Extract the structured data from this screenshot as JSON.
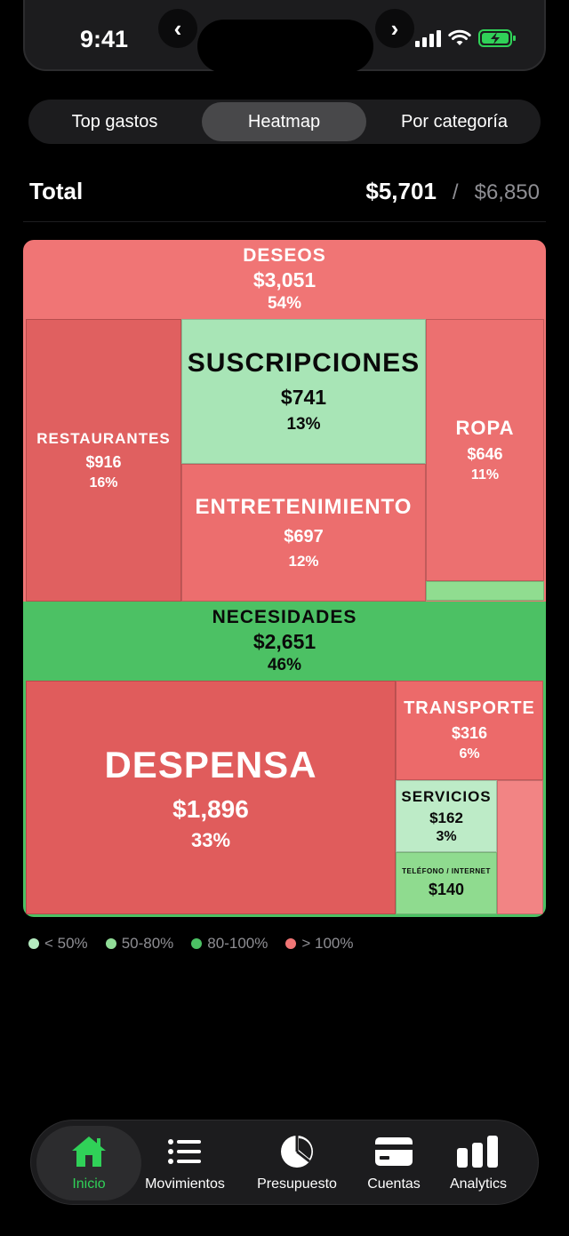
{
  "status_bar": {
    "time": "9:41",
    "back_glyph": "‹",
    "forward_glyph": "›"
  },
  "segmented": {
    "tabs": [
      "Top gastos",
      "Heatmap",
      "Por categoría"
    ],
    "active": "Heatmap"
  },
  "total": {
    "label": "Total",
    "spent": "$5,701",
    "separator": "/",
    "budget": "$6,850"
  },
  "treemap": {
    "deseos": {
      "name": "DESEOS",
      "amount": "$3,051",
      "pct": "54%"
    },
    "restaurantes": {
      "name": "RESTAURANTES",
      "amount": "$916",
      "pct": "16%"
    },
    "suscripciones": {
      "name": "SUSCRIPCIONES",
      "amount": "$741",
      "pct": "13%"
    },
    "entretenimiento": {
      "name": "ENTRETENIMIENTO",
      "amount": "$697",
      "pct": "12%"
    },
    "ropa": {
      "name": "ROPA",
      "amount": "$646",
      "pct": "11%"
    },
    "necesidades": {
      "name": "NECESIDADES",
      "amount": "$2,651",
      "pct": "46%"
    },
    "despensa": {
      "name": "DESPENSA",
      "amount": "$1,896",
      "pct": "33%"
    },
    "transporte": {
      "name": "TRANSPORTE",
      "amount": "$316",
      "pct": "6%"
    },
    "servicios": {
      "name": "SERVICIOS",
      "amount": "$162",
      "pct": "3%"
    },
    "telefono": {
      "name": "TELÉFONO / INTERNET",
      "amount": "$140"
    }
  },
  "legend": [
    {
      "label": "< 50%",
      "color": "#b5ebc0"
    },
    {
      "label": "50-80%",
      "color": "#90dd97"
    },
    {
      "label": "80-100%",
      "color": "#4cc164"
    },
    {
      "label": "> 100%",
      "color": "#f07575"
    }
  ],
  "colors": {
    "over": "#f07575",
    "over_dark": "#e06060",
    "green_light": "#a8e5b6",
    "green_pale": "#bdebc7",
    "green_mid": "#90dd90",
    "green": "#4cc164",
    "accent": "#30d158"
  },
  "tabbar": {
    "items": [
      {
        "label": "Inicio",
        "icon": "home-icon",
        "active": true
      },
      {
        "label": "Movimientos",
        "icon": "list-icon"
      },
      {
        "label": "Presupuesto",
        "icon": "pie-chart-icon"
      },
      {
        "label": "Cuentas",
        "icon": "card-icon"
      },
      {
        "label": "Analytics",
        "icon": "bar-chart-icon"
      }
    ]
  }
}
